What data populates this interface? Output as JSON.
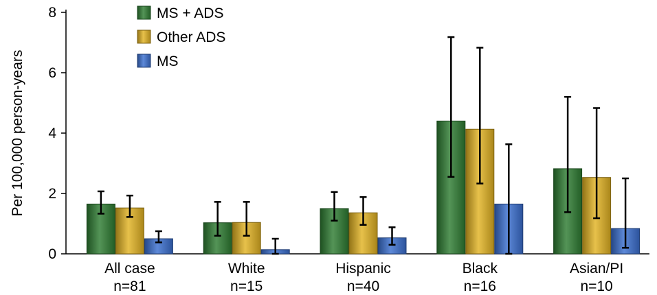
{
  "chart_data": {
    "type": "bar",
    "title": "",
    "xlabel": "",
    "ylabel": "Per 100,000 person-years",
    "ylim": [
      0,
      8
    ],
    "yticks": [
      "0",
      "2",
      "4",
      "6",
      "8"
    ],
    "grid": false,
    "legend_position": "top-left",
    "categories": [
      {
        "label": "All case",
        "n": "n=81"
      },
      {
        "label": "White",
        "n": "n=15"
      },
      {
        "label": "Hispanic",
        "n": "n=40"
      },
      {
        "label": "Black",
        "n": "n=16"
      },
      {
        "label": "Asian/PI",
        "n": "n=10"
      }
    ],
    "series": [
      {
        "name": "MS + ADS",
        "color": "#2e7d32",
        "values": [
          1.65,
          1.03,
          1.5,
          4.4,
          2.82
        ],
        "error_low": [
          1.33,
          0.6,
          1.1,
          2.55,
          1.38
        ],
        "error_high": [
          2.07,
          1.72,
          2.05,
          7.18,
          5.2
        ]
      },
      {
        "name": "Other ADS",
        "color": "#e2b323",
        "values": [
          1.52,
          1.04,
          1.36,
          4.13,
          2.53
        ],
        "error_low": [
          1.22,
          0.6,
          0.96,
          2.33,
          1.18
        ],
        "error_high": [
          1.93,
          1.72,
          1.88,
          6.83,
          4.83
        ]
      },
      {
        "name": "MS",
        "color": "#3a6fd0",
        "values": [
          0.5,
          0.14,
          0.53,
          1.65,
          0.84
        ],
        "error_low": [
          0.38,
          0.0,
          0.3,
          0.0,
          0.2
        ],
        "error_high": [
          0.75,
          0.5,
          0.88,
          3.63,
          2.5
        ]
      }
    ]
  }
}
